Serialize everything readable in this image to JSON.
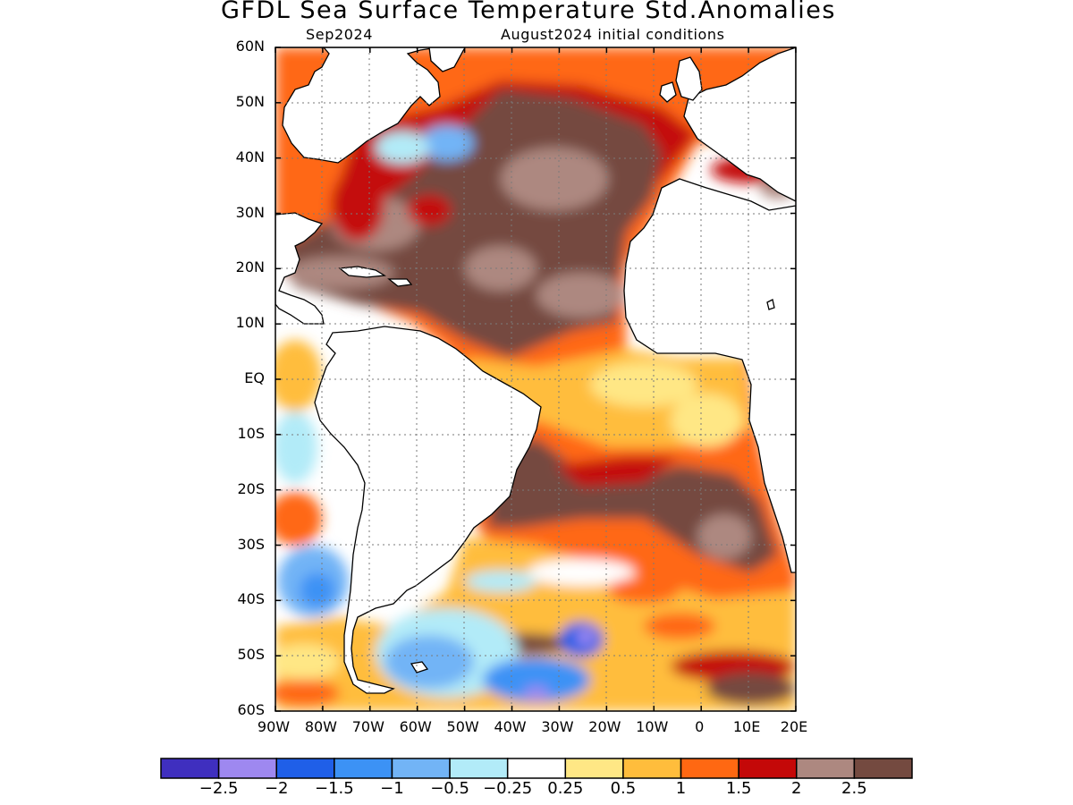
{
  "title": "GFDL Sea Surface Temperature Std.Anomalies",
  "subtitle_left": "Sep2024",
  "subtitle_right": "August2024 initial conditions",
  "axes": {
    "lat_labels": [
      "60N",
      "50N",
      "40N",
      "30N",
      "20N",
      "10N",
      "EQ",
      "10S",
      "20S",
      "30S",
      "40S",
      "50S",
      "60S"
    ],
    "lon_labels": [
      "90W",
      "80W",
      "70W",
      "60W",
      "50W",
      "40W",
      "30W",
      "20W",
      "10W",
      "0",
      "10E",
      "20E"
    ],
    "lat_range": [
      -60,
      60
    ],
    "lon_range": [
      -90,
      20
    ],
    "grid": "dotted"
  },
  "colorbar": {
    "colors": [
      "#3f2fbf",
      "#9e88f0",
      "#1f5fe8",
      "#3c92f5",
      "#72b4f6",
      "#b2ebf8",
      "#ffffff",
      "#ffe785",
      "#ffbd3c",
      "#ff6812",
      "#c40808",
      "#ad8880",
      "#744a40"
    ],
    "labels": [
      "−2.5",
      "−2",
      "−1.5",
      "−1",
      "−0.5",
      "−0.25",
      "0.25",
      "0.5",
      "1",
      "1.5",
      "2",
      "2.5"
    ]
  }
}
